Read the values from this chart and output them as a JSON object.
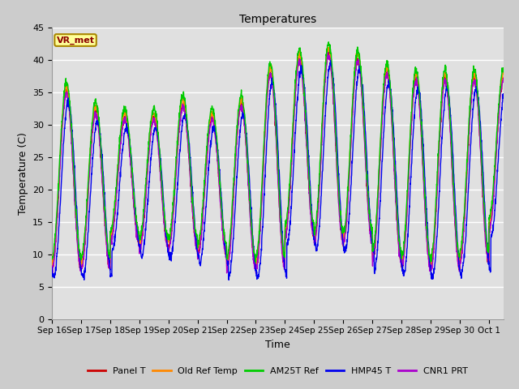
{
  "title": "Temperatures",
  "xlabel": "Time",
  "ylabel": "Temperature (C)",
  "ylim": [
    0,
    45
  ],
  "yticks": [
    0,
    5,
    10,
    15,
    20,
    25,
    30,
    35,
    40,
    45
  ],
  "n_days": 15.5,
  "xtick_labels": [
    "Sep 16",
    "Sep 17",
    "Sep 18",
    "Sep 19",
    "Sep 20",
    "Sep 21",
    "Sep 22",
    "Sep 23",
    "Sep 24",
    "Sep 25",
    "Sep 26",
    "Sep 27",
    "Sep 28",
    "Sep 29",
    "Sep 30",
    "Oct 1"
  ],
  "legend_label": "VR_met",
  "series": [
    {
      "name": "Panel T",
      "color": "#cc0000"
    },
    {
      "name": "Old Ref Temp",
      "color": "#ff8800"
    },
    {
      "name": "AM25T Ref",
      "color": "#00cc00"
    },
    {
      "name": "HMP45 T",
      "color": "#0000ee"
    },
    {
      "name": "CNR1 PRT",
      "color": "#aa00cc"
    }
  ],
  "day_maxes": [
    35,
    32,
    31,
    31,
    33,
    31,
    33,
    38,
    40,
    41,
    40,
    38,
    37,
    37,
    37,
    37
  ],
  "day_mins": [
    8,
    8,
    12,
    11,
    11,
    10,
    8,
    8,
    13,
    12,
    12,
    9,
    8,
    8,
    9,
    14
  ],
  "fig_facecolor": "#cccccc",
  "ax_facecolor": "#e0e0e0",
  "grid_color": "#ffffff",
  "figsize": [
    6.4,
    4.8
  ],
  "dpi": 100
}
